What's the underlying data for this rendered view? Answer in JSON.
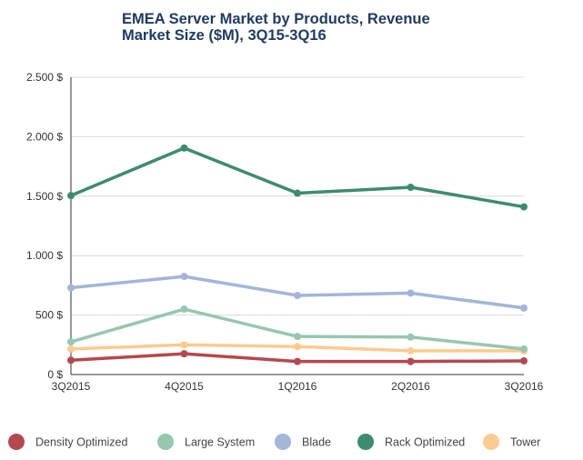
{
  "chart_data": {
    "type": "line",
    "title_line1": "EMEA Server Market by Products, Revenue",
    "title_line2": "Market Size ($M), 3Q15-3Q16",
    "categories": [
      "3Q2015",
      "4Q2015",
      "1Q2016",
      "2Q2016",
      "3Q2016"
    ],
    "y_ticks": [
      {
        "value": 0,
        "label": "0 $"
      },
      {
        "value": 500,
        "label": "500 $"
      },
      {
        "value": 1000,
        "label": "1.000 $"
      },
      {
        "value": 1500,
        "label": "1.500 $"
      },
      {
        "value": 2000,
        "label": "2.000 $"
      },
      {
        "value": 2500,
        "label": "2.500 $"
      }
    ],
    "ylim": [
      0,
      2500
    ],
    "grid": "horizontal",
    "legend_position": "bottom",
    "series": [
      {
        "name": "Density Optimized",
        "color": "#b5484e",
        "values": [
          120,
          175,
          110,
          110,
          115
        ]
      },
      {
        "name": "Large System",
        "color": "#96c7af",
        "values": [
          275,
          550,
          320,
          315,
          215
        ]
      },
      {
        "name": "Blade",
        "color": "#a3b5d9",
        "values": [
          730,
          825,
          665,
          685,
          560
        ]
      },
      {
        "name": "Rack Optimized",
        "color": "#3d8b72",
        "values": [
          1505,
          1905,
          1525,
          1575,
          1410
        ]
      },
      {
        "name": "Tower",
        "color": "#fccb8f",
        "values": [
          215,
          250,
          235,
          200,
          200
        ]
      }
    ]
  }
}
